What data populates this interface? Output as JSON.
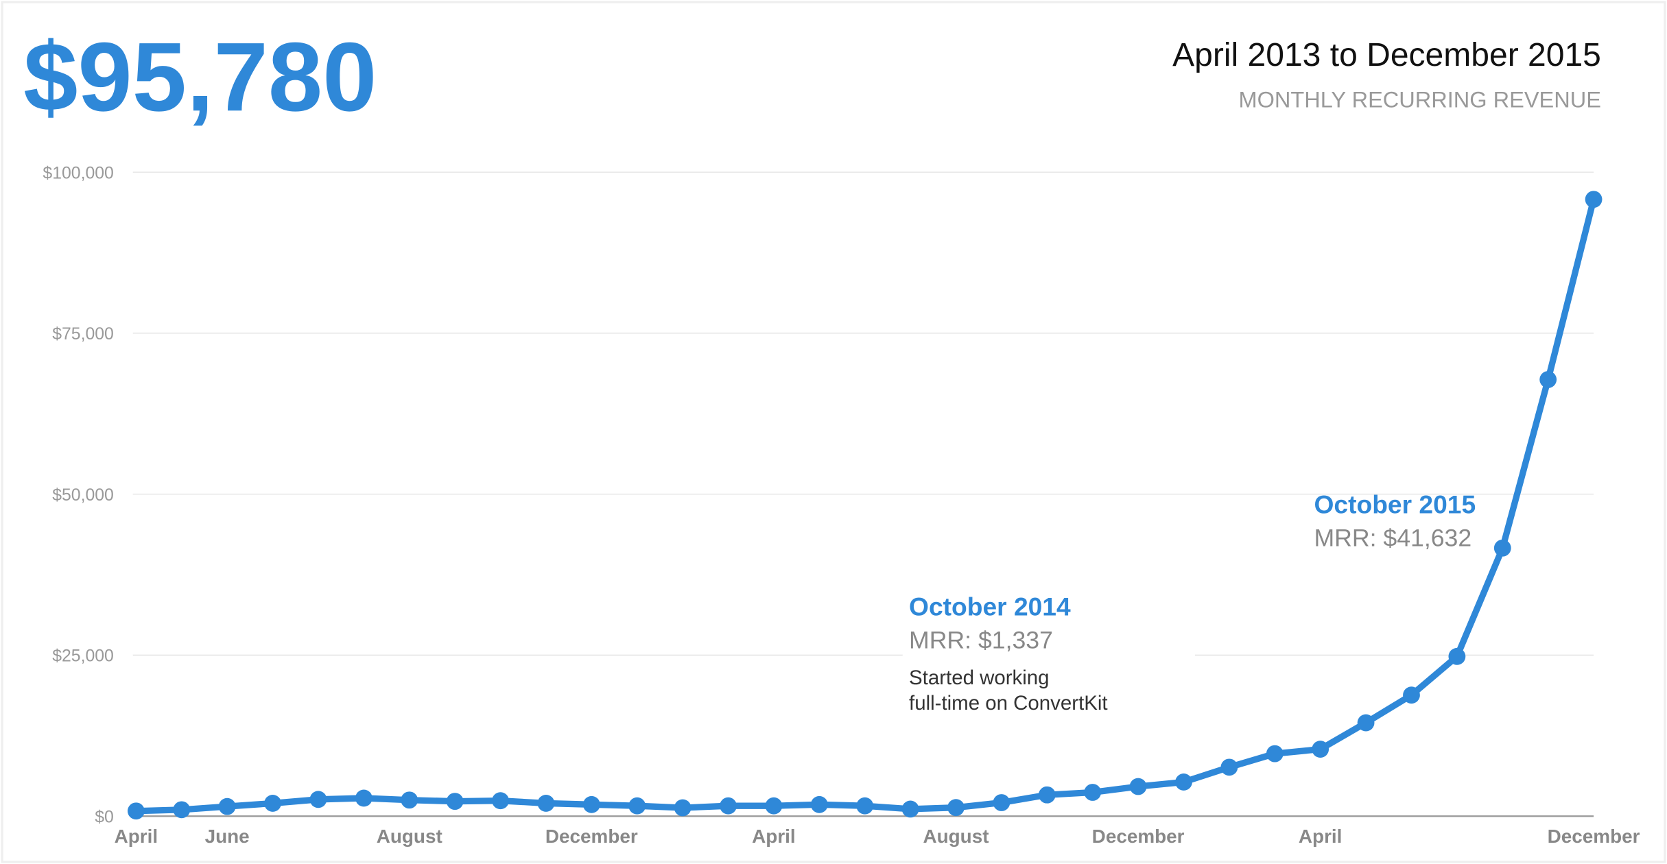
{
  "chart_data": {
    "type": "line",
    "headline": "$95,780",
    "title": "April 2013 to December 2015",
    "subtitle": "MONTHLY RECURRING REVENUE",
    "categories": [
      "April",
      null,
      "June",
      null,
      null,
      null,
      "August",
      null,
      null,
      null,
      "December",
      null,
      null,
      null,
      "April",
      null,
      null,
      null,
      "August",
      null,
      null,
      null,
      "December",
      null,
      null,
      null,
      "April",
      null,
      null,
      null,
      null,
      null,
      "December"
    ],
    "series": [
      {
        "name": "MRR",
        "color": "#2f88d8",
        "values": [
          800,
          1000,
          1500,
          2000,
          2600,
          2800,
          2500,
          2300,
          2400,
          2000,
          1800,
          1600,
          1300,
          1600,
          1600,
          1800,
          1600,
          1100,
          1337,
          2100,
          3300,
          3700,
          4600,
          5300,
          7600,
          9700,
          10400,
          14500,
          18800,
          24800,
          41632,
          67800,
          95780
        ]
      }
    ],
    "ylim": [
      0,
      100000
    ],
    "yticks": [
      {
        "value": 0,
        "label": "$0"
      },
      {
        "value": 25000,
        "label": "$25,000"
      },
      {
        "value": 50000,
        "label": "$50,000"
      },
      {
        "value": 75000,
        "label": "$75,000"
      },
      {
        "value": 100000,
        "label": "$100,000"
      }
    ],
    "grid": true,
    "annotations": [
      {
        "title": "October 2014",
        "text": "MRR: $1,337",
        "note": [
          "Started working",
          "full-time on ConvertKit"
        ]
      },
      {
        "title": "October 2015",
        "text": "MRR: $41,632"
      }
    ]
  }
}
